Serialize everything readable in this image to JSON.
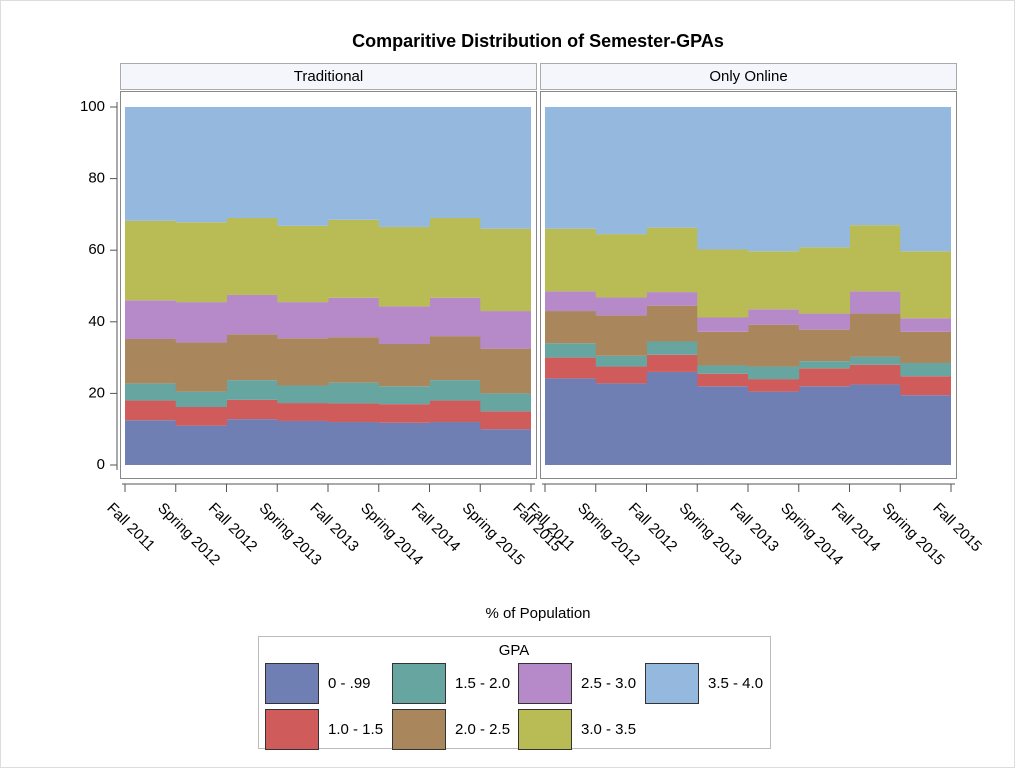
{
  "chart_data": {
    "type": "step-area-stacked",
    "title": "Comparitive Distribution of Semester-GPAs",
    "xlabel": "% of Population",
    "legend_title": "GPA",
    "categories": [
      "Fall 2011",
      "Spring 2012",
      "Fall 2012",
      "Spring 2013",
      "Fall 2013",
      "Spring 2014",
      "Fall 2014",
      "Spring 2015",
      "Fall 2015"
    ],
    "ylim": [
      0,
      100
    ],
    "yticks": [
      0,
      20,
      40,
      60,
      80,
      100
    ],
    "groups": [
      {
        "name": "0 - .99",
        "color": "#6f7eb3"
      },
      {
        "name": "1.0 - 1.5",
        "color": "#d05b5b"
      },
      {
        "name": "1.5 - 2.0",
        "color": "#66a5a0"
      },
      {
        "name": "2.0 - 2.5",
        "color": "#a9865b"
      },
      {
        "name": "2.5 - 3.0",
        "color": "#b689c8"
      },
      {
        "name": "3.0 - 3.5",
        "color": "#b9bc55"
      },
      {
        "name": "3.5 - 4.0",
        "color": "#94b8de"
      }
    ],
    "panels": [
      {
        "title": "Traditional",
        "values": [
          [
            12.5,
            11,
            12.8,
            12.3,
            12,
            11.8,
            12,
            10,
            10
          ],
          [
            5.5,
            5.2,
            5.4,
            5,
            5.2,
            5.2,
            6,
            5,
            5
          ],
          [
            4.8,
            4.3,
            5.5,
            4.9,
            5.8,
            5,
            5.7,
            5,
            5
          ],
          [
            12.4,
            13.7,
            12.8,
            13.2,
            12.7,
            11.8,
            12.3,
            12.5,
            12.5
          ],
          [
            10.8,
            11.3,
            11,
            10.1,
            11,
            10.5,
            10.7,
            10.5,
            10.5
          ],
          [
            22.2,
            22.3,
            21.5,
            21.3,
            21.8,
            22.2,
            22.3,
            23,
            23
          ],
          [
            31.8,
            32.2,
            31,
            33.2,
            31.5,
            33.5,
            31,
            34,
            34
          ]
        ]
      },
      {
        "title": "Only Online",
        "values": [
          [
            24.2,
            22.8,
            26,
            22,
            20.5,
            22,
            22.5,
            19.5,
            19.5
          ],
          [
            5.8,
            4.7,
            4.8,
            3.5,
            3.5,
            5,
            5.5,
            5.3,
            5.3
          ],
          [
            4,
            3,
            3.7,
            2.3,
            3.5,
            2,
            2.2,
            3.7,
            3.7
          ],
          [
            9,
            11.3,
            10,
            9.4,
            11.7,
            8.8,
            12.1,
            8.7,
            8.7
          ],
          [
            5.5,
            5,
            3.8,
            4,
            4.3,
            4.5,
            6.2,
            3.8,
            3.8
          ],
          [
            17.5,
            17.7,
            18,
            19,
            16.2,
            18.5,
            18.5,
            18.7,
            18.7
          ],
          [
            34,
            35.5,
            33.7,
            39.8,
            40.3,
            39.2,
            33,
            40.3,
            40.3
          ]
        ]
      }
    ]
  }
}
